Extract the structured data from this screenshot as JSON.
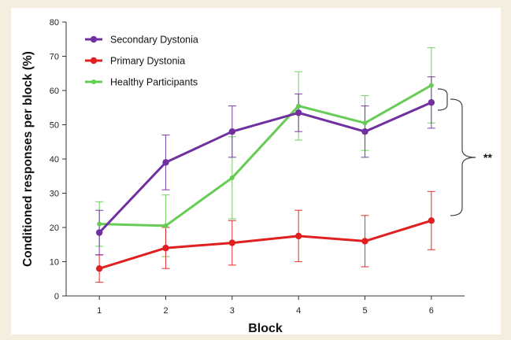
{
  "chart_data": {
    "type": "line",
    "xlabel": "Block",
    "ylabel": "Conditioned responses per block (%)",
    "x": [
      1,
      2,
      3,
      4,
      5,
      6
    ],
    "ylim": [
      0,
      80
    ],
    "yticks": [
      0,
      10,
      20,
      30,
      40,
      50,
      60,
      70,
      80
    ],
    "grid": false,
    "legend_position": "top-left",
    "series": [
      {
        "name": "Secondary Dystonia",
        "color": "#7030a0",
        "values": [
          18.5,
          39,
          48,
          53.5,
          48,
          56.5
        ],
        "error": [
          6.5,
          8,
          7.5,
          5.5,
          7.5,
          7.5
        ]
      },
      {
        "name": "Primary Dystonia",
        "color": "#e02020",
        "values": [
          8,
          14,
          15.5,
          17.5,
          16,
          22
        ],
        "error": [
          4,
          6,
          6.5,
          7.5,
          7.5,
          8.5
        ]
      },
      {
        "name": "Healthy Participants",
        "color": "#66cc55",
        "values": [
          21,
          20.5,
          34.5,
          55.5,
          50.5,
          61.5
        ],
        "error": [
          6.5,
          9,
          12,
          10,
          8,
          11
        ]
      }
    ],
    "annotations": [
      {
        "text": "**",
        "kind": "significance-bracket"
      }
    ]
  }
}
